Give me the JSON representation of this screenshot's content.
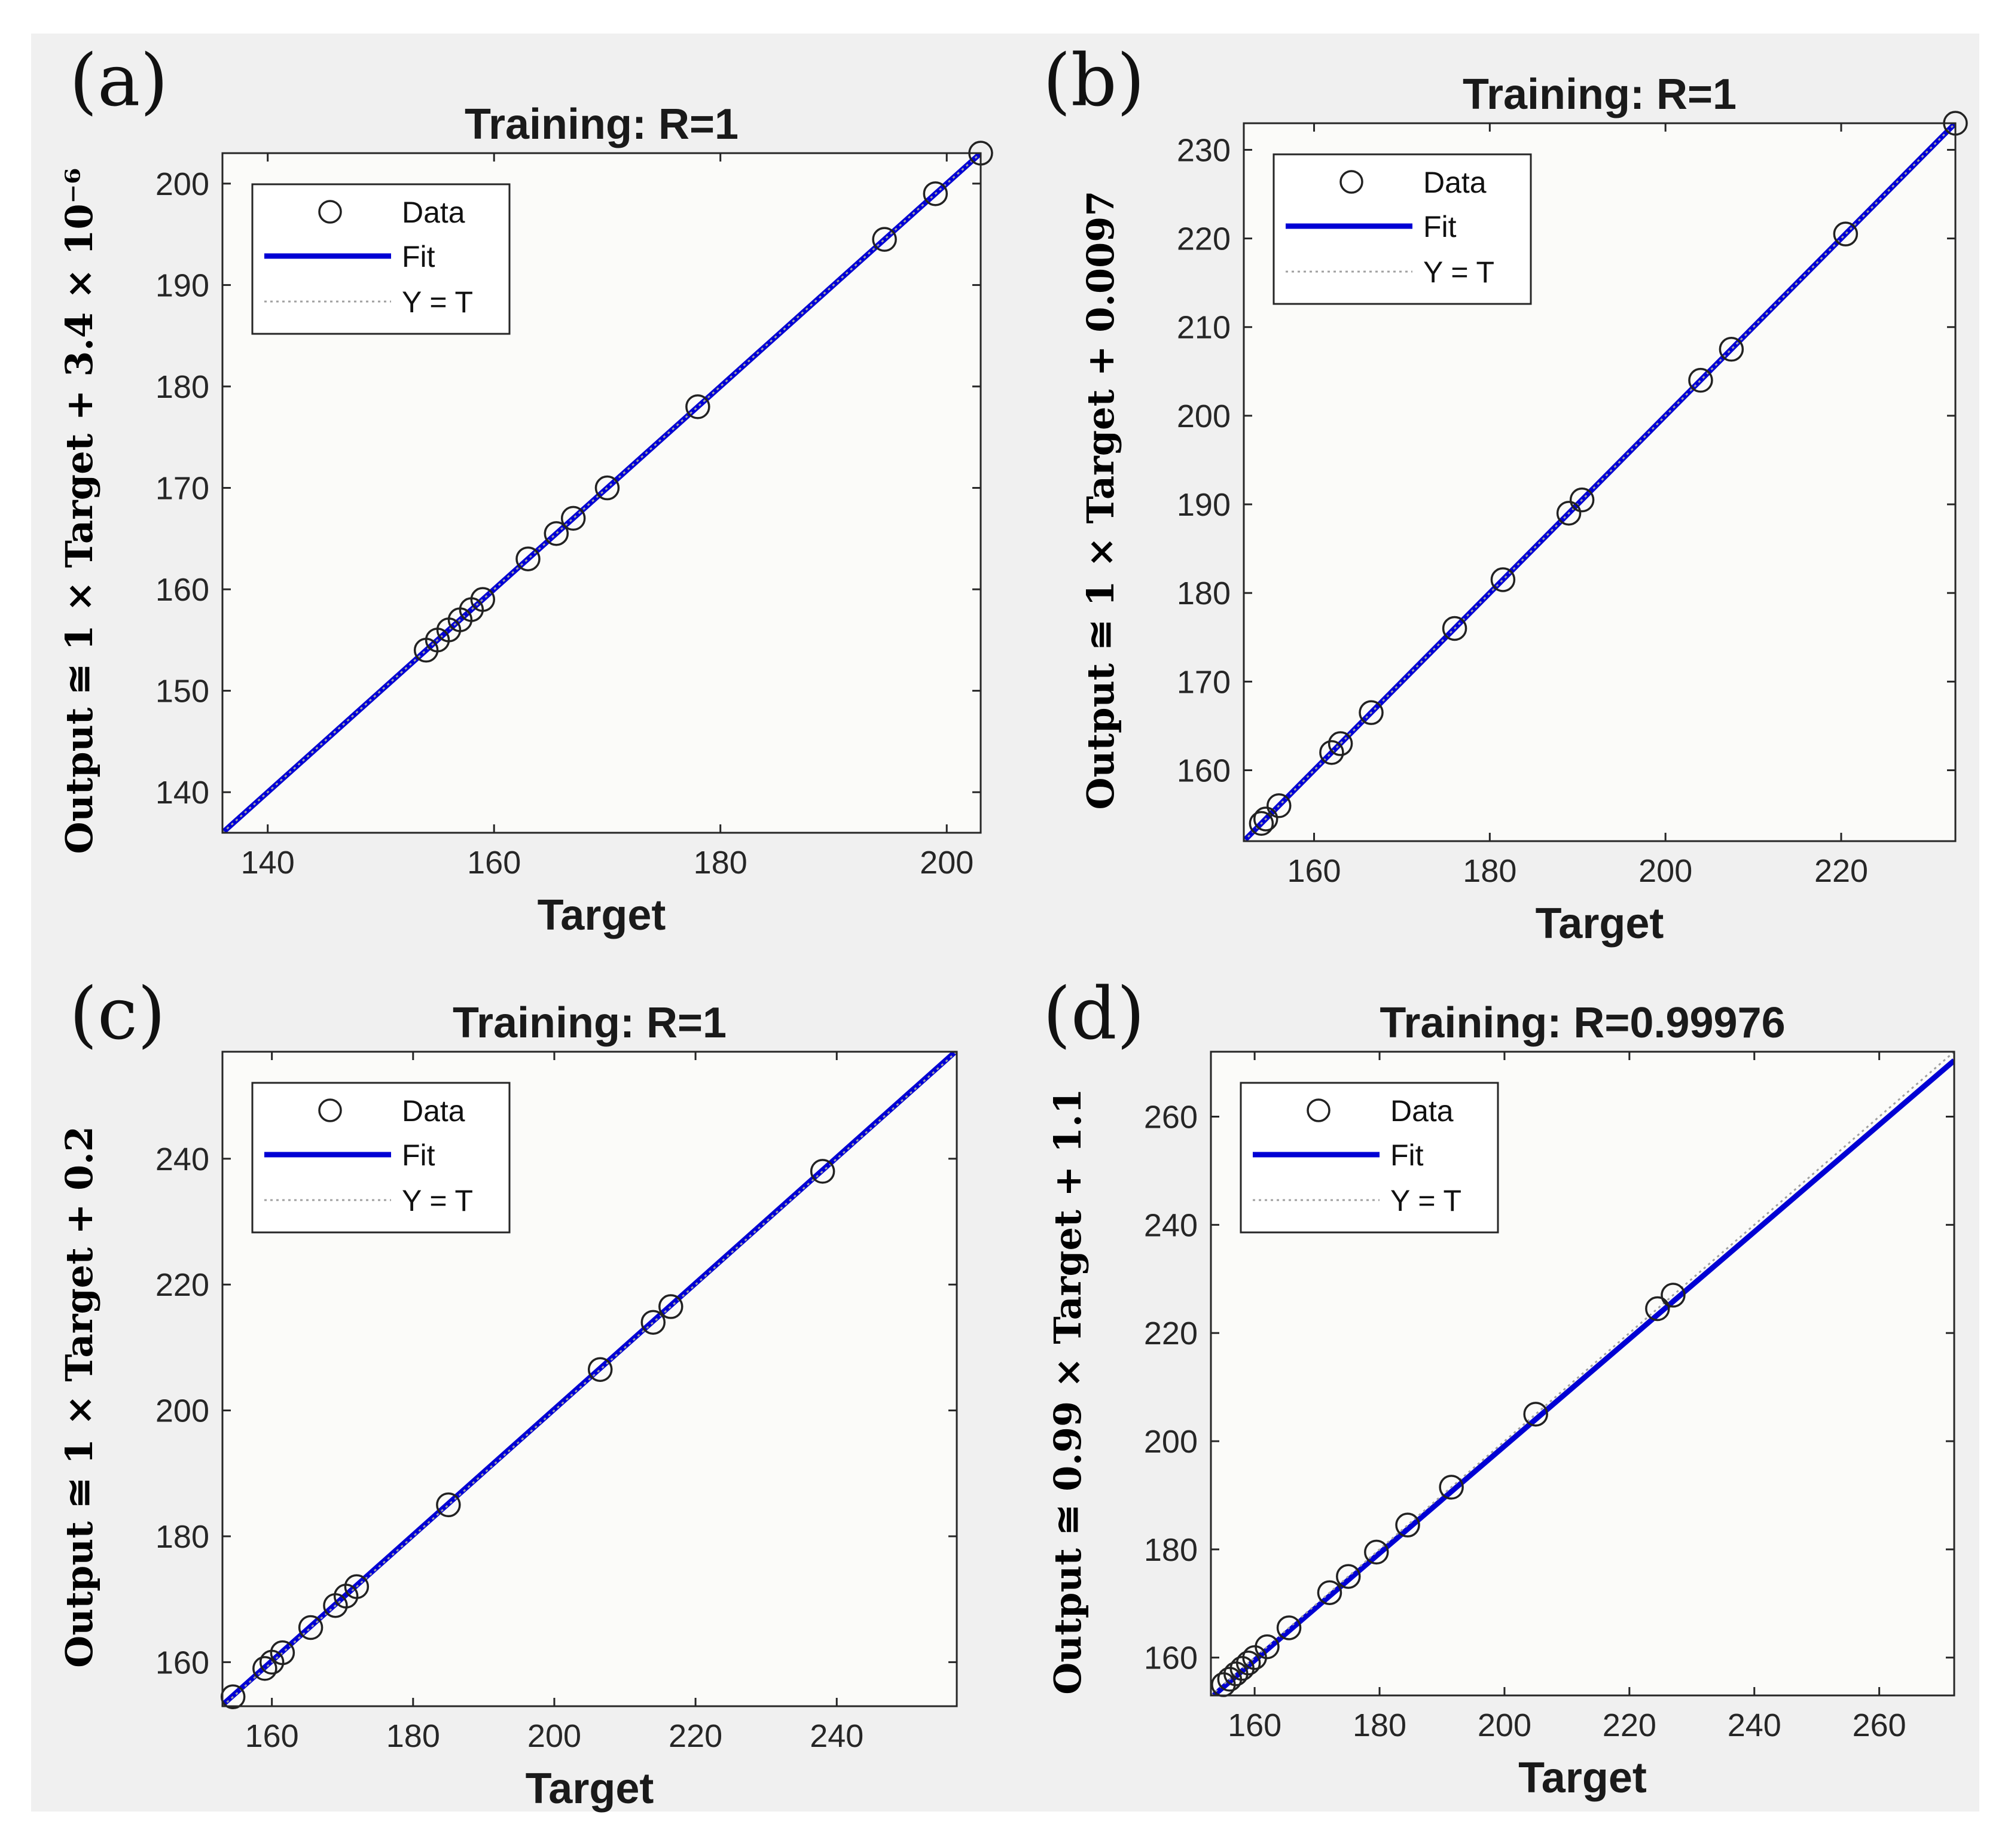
{
  "figure": {
    "background": "#ffffff",
    "panel_background": "#f0f0f0",
    "axes_background": "#fbfbf9"
  },
  "styles": {
    "fit_color": "#0000d4",
    "marker_color": "#222222",
    "ident_color": "#a0a0a0"
  },
  "chart_data": [
    {
      "panel_label": "(a)",
      "type": "scatter",
      "title": "Training: R=1",
      "xlabel": "Target",
      "ylabel": "Output  ≅ 1 × Target + 3.4 × 10⁻⁶",
      "xlim": [
        136,
        203
      ],
      "ylim": [
        136,
        203
      ],
      "xticks": [
        140,
        160,
        180,
        200
      ],
      "yticks": [
        140,
        150,
        160,
        170,
        180,
        190,
        200
      ],
      "legend": {
        "position": "top-left",
        "entries": [
          "Data",
          "Fit",
          "Y = T"
        ]
      },
      "fit": {
        "slope": 1,
        "intercept": 3.4e-06
      },
      "points": [
        [
          154,
          154
        ],
        [
          155,
          155
        ],
        [
          156,
          156
        ],
        [
          157,
          157
        ],
        [
          158,
          158
        ],
        [
          159,
          159
        ],
        [
          163,
          163
        ],
        [
          165.5,
          165.5
        ],
        [
          167,
          167
        ],
        [
          170,
          170
        ],
        [
          178,
          178
        ],
        [
          194.5,
          194.5
        ],
        [
          199,
          199
        ],
        [
          203,
          203
        ]
      ]
    },
    {
      "panel_label": "(b)",
      "type": "scatter",
      "title": "Training: R=1",
      "xlabel": "Target",
      "ylabel": "Output ≅ 1 × Target + 0.0097",
      "xlim": [
        152,
        233
      ],
      "ylim": [
        152,
        233
      ],
      "xticks": [
        160,
        180,
        200,
        220
      ],
      "yticks": [
        160,
        170,
        180,
        190,
        200,
        210,
        220,
        230
      ],
      "legend": {
        "position": "top-left",
        "entries": [
          "Data",
          "Fit",
          "Y = T"
        ]
      },
      "fit": {
        "slope": 1,
        "intercept": 0.0097
      },
      "points": [
        [
          154,
          154
        ],
        [
          154.5,
          154.5
        ],
        [
          156,
          156
        ],
        [
          162,
          162
        ],
        [
          163,
          163
        ],
        [
          166.5,
          166.5
        ],
        [
          176,
          176
        ],
        [
          181.5,
          181.5
        ],
        [
          189,
          189
        ],
        [
          190.5,
          190.5
        ],
        [
          204,
          204
        ],
        [
          207.5,
          207.5
        ],
        [
          220.5,
          220.5
        ],
        [
          233,
          233
        ]
      ]
    },
    {
      "panel_label": "(c)",
      "type": "scatter",
      "title": "Training: R=1",
      "xlabel": "Target",
      "ylabel": "Output ≅ 1 × Target + 0.2",
      "xlim": [
        153,
        257
      ],
      "ylim": [
        153,
        257
      ],
      "xticks": [
        160,
        180,
        200,
        220,
        240
      ],
      "yticks": [
        160,
        180,
        200,
        220,
        240
      ],
      "legend": {
        "position": "top-left",
        "entries": [
          "Data",
          "Fit",
          "Y = T"
        ]
      },
      "fit": {
        "slope": 1,
        "intercept": 0.2
      },
      "points": [
        [
          154.5,
          154.5
        ],
        [
          159,
          159
        ],
        [
          160,
          160
        ],
        [
          161.5,
          161.5
        ],
        [
          165.5,
          165.5
        ],
        [
          169,
          169
        ],
        [
          170.5,
          170.5
        ],
        [
          172,
          172
        ],
        [
          185,
          185
        ],
        [
          206.5,
          206.5
        ],
        [
          214,
          214
        ],
        [
          216.5,
          216.5
        ],
        [
          238,
          238
        ]
      ]
    },
    {
      "panel_label": "(d)",
      "type": "scatter",
      "title": "Training: R=0.99976",
      "xlabel": "Target",
      "ylabel": "Output  ≅ 0.99 × Target + 1.1",
      "xlim": [
        153,
        272
      ],
      "ylim": [
        153,
        272
      ],
      "xticks": [
        160,
        180,
        200,
        220,
        240,
        260
      ],
      "yticks": [
        160,
        180,
        200,
        220,
        240,
        260
      ],
      "legend": {
        "position": "top-left",
        "entries": [
          "Data",
          "Fit",
          "Y = T"
        ]
      },
      "fit": {
        "slope": 0.99,
        "intercept": 1.1
      },
      "points": [
        [
          155,
          155
        ],
        [
          156,
          156
        ],
        [
          157,
          157
        ],
        [
          158,
          158
        ],
        [
          159,
          159
        ],
        [
          160,
          160
        ],
        [
          162,
          162
        ],
        [
          165.5,
          165.5
        ],
        [
          172,
          172
        ],
        [
          175,
          175
        ],
        [
          179.5,
          179.5
        ],
        [
          184.5,
          184.5
        ],
        [
          191.5,
          191.5
        ],
        [
          205,
          205
        ],
        [
          224.5,
          224.5
        ],
        [
          227,
          227
        ]
      ]
    }
  ]
}
